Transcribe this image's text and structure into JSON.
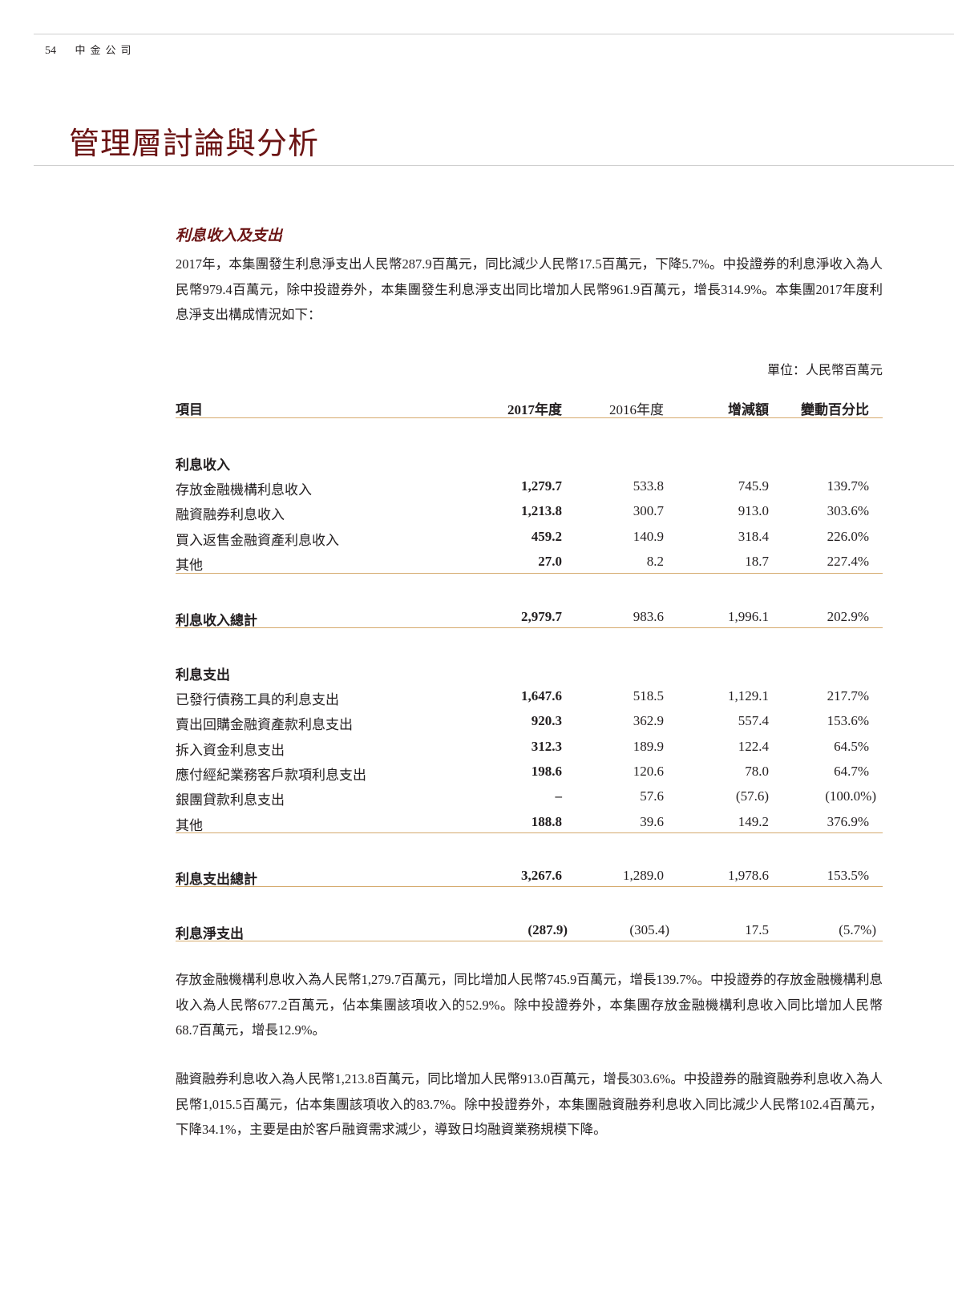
{
  "header": {
    "page_number": "54",
    "company": "中金公司"
  },
  "page_title": "管理層討論與分析",
  "section_title": "利息收入及支出",
  "intro_paragraph": "2017年，本集團發生利息淨支出人民幣287.9百萬元，同比減少人民幣17.5百萬元，下降5.7%。中投證券的利息淨收入為人民幣979.4百萬元，除中投證券外，本集團發生利息淨支出同比增加人民幣961.9百萬元，增長314.9%。本集團2017年度利息淨支出構成情況如下：",
  "unit_label": "單位：人民幣百萬元",
  "table": {
    "headers": [
      "項目",
      "2017年度",
      "2016年度",
      "增減額",
      "變動百分比"
    ],
    "income_section": "利息收入",
    "income_rows": [
      [
        "存放金融機構利息收入",
        "1,279.7",
        "533.8",
        "745.9",
        "139.7%"
      ],
      [
        "融資融券利息收入",
        "1,213.8",
        "300.7",
        "913.0",
        "303.6%"
      ],
      [
        "買入返售金融資產利息收入",
        "459.2",
        "140.9",
        "318.4",
        "226.0%"
      ],
      [
        "其他",
        "27.0",
        "8.2",
        "18.7",
        "227.4%"
      ]
    ],
    "income_total": [
      "利息收入總計",
      "2,979.7",
      "983.6",
      "1,996.1",
      "202.9%"
    ],
    "expense_section": "利息支出",
    "expense_rows": [
      [
        "已發行債務工具的利息支出",
        "1,647.6",
        "518.5",
        "1,129.1",
        "217.7%"
      ],
      [
        "賣出回購金融資產款利息支出",
        "920.3",
        "362.9",
        "557.4",
        "153.6%"
      ],
      [
        "拆入資金利息支出",
        "312.3",
        "189.9",
        "122.4",
        "64.5%"
      ],
      [
        "應付經紀業務客戶款項利息支出",
        "198.6",
        "120.6",
        "78.0",
        "64.7%"
      ],
      [
        "銀團貸款利息支出",
        "–",
        "57.6",
        "(57.6)",
        "(100.0%)"
      ],
      [
        "其他",
        "188.8",
        "39.6",
        "149.2",
        "376.9%"
      ]
    ],
    "expense_total": [
      "利息支出總計",
      "3,267.6",
      "1,289.0",
      "1,978.6",
      "153.5%"
    ],
    "net": [
      "利息淨支出",
      "(287.9)",
      "(305.4)",
      "17.5",
      "(5.7%)"
    ]
  },
  "paragraph_2": "存放金融機構利息收入為人民幣1,279.7百萬元，同比增加人民幣745.9百萬元，增長139.7%。中投證券的存放金融機構利息收入為人民幣677.2百萬元，佔本集團該項收入的52.9%。除中投證券外，本集團存放金融機構利息收入同比增加人民幣68.7百萬元，增長12.9%。",
  "paragraph_3": "融資融券利息收入為人民幣1,213.8百萬元，同比增加人民幣913.0百萬元，增長303.6%。中投證券的融資融券利息收入為人民幣1,015.5百萬元，佔本集團該項收入的83.7%。除中投證券外，本集團融資融券利息收入同比減少人民幣102.4百萬元，下降34.1%，主要是由於客戶融資需求減少，導致日均融資業務規模下降。",
  "colors": {
    "title": "#6b1414",
    "rule": "#d5aa6d"
  }
}
